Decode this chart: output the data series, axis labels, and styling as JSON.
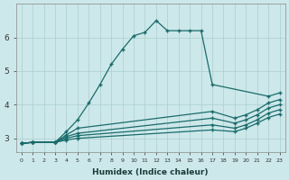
{
  "xlabel": "Humidex (Indice chaleur)",
  "ylabel": "",
  "background_color": "#cde8ea",
  "grid_color": "#aacdd0",
  "line_color": "#1a6b6b",
  "xlim": [
    -0.5,
    23.5
  ],
  "ylim": [
    2.6,
    7.0
  ],
  "xticks": [
    0,
    1,
    2,
    3,
    4,
    5,
    6,
    7,
    8,
    9,
    10,
    11,
    12,
    13,
    14,
    15,
    16,
    17,
    18,
    19,
    20,
    21,
    22,
    23
  ],
  "yticks": [
    3,
    4,
    5,
    6
  ],
  "lines": [
    {
      "x": [
        0,
        1,
        3,
        4,
        5,
        6,
        7,
        8,
        9,
        10,
        11,
        12,
        13,
        14,
        15,
        16,
        17,
        22,
        23
      ],
      "y": [
        2.85,
        2.88,
        2.88,
        3.2,
        3.55,
        4.05,
        4.6,
        5.2,
        5.65,
        6.05,
        6.15,
        6.5,
        6.2,
        6.2,
        6.2,
        6.2,
        4.6,
        4.25,
        4.35
      ]
    },
    {
      "x": [
        0,
        1,
        3,
        4,
        5,
        17,
        19,
        20,
        21,
        22,
        23
      ],
      "y": [
        2.85,
        2.88,
        2.88,
        3.1,
        3.3,
        3.8,
        3.6,
        3.7,
        3.85,
        4.05,
        4.15
      ]
    },
    {
      "x": [
        0,
        1,
        3,
        4,
        5,
        17,
        19,
        20,
        21,
        22,
        23
      ],
      "y": [
        2.85,
        2.88,
        2.88,
        3.05,
        3.15,
        3.6,
        3.45,
        3.55,
        3.7,
        3.9,
        4.0
      ]
    },
    {
      "x": [
        0,
        1,
        3,
        4,
        5,
        17,
        19,
        20,
        21,
        22,
        23
      ],
      "y": [
        2.85,
        2.88,
        2.88,
        3.0,
        3.08,
        3.4,
        3.3,
        3.4,
        3.55,
        3.75,
        3.85
      ]
    },
    {
      "x": [
        0,
        1,
        3,
        4,
        5,
        17,
        19,
        20,
        21,
        22,
        23
      ],
      "y": [
        2.85,
        2.88,
        2.88,
        2.95,
        3.0,
        3.25,
        3.2,
        3.3,
        3.45,
        3.62,
        3.72
      ]
    }
  ]
}
